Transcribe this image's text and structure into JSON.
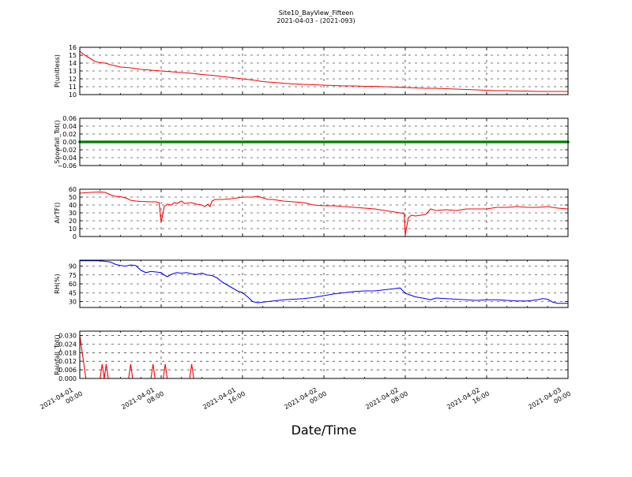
{
  "figure": {
    "title": "Site10_BayView_Fifteen",
    "subtitle": "2021-04-03 - (2021-093)",
    "xlabel": "Date/Time",
    "x_ticks": [
      {
        "x": 0,
        "lines": [
          "2021-04-01",
          "00:00"
        ]
      },
      {
        "x": 8,
        "lines": [
          "2021-04-01",
          "08:00"
        ]
      },
      {
        "x": 16,
        "lines": [
          "2021-04-01",
          "16:00"
        ]
      },
      {
        "x": 24,
        "lines": [
          "2021-04-02",
          "00:00"
        ]
      },
      {
        "x": 32,
        "lines": [
          "2021-04-02",
          "08:00"
        ]
      },
      {
        "x": 40,
        "lines": [
          "2021-04-02",
          "16:00"
        ]
      },
      {
        "x": 48,
        "lines": [
          "2021-04-03",
          "00:00"
        ]
      }
    ]
  },
  "chart_data": [
    {
      "type": "line",
      "title": "",
      "xlabel": "",
      "ylabel": "P(unitless)",
      "ylim": [
        10,
        16
      ],
      "yticks": [
        "10",
        "11",
        "12",
        "13",
        "14",
        "15",
        "16"
      ],
      "grid": true,
      "color": "#ff0000",
      "x_unit": "hours since 2021-04-01 00:00",
      "points": [
        [
          0,
          15.5
        ],
        [
          0.5,
          15.0
        ],
        [
          1,
          14.6
        ],
        [
          1.5,
          14.2
        ],
        [
          2,
          14.05
        ],
        [
          2.5,
          14.0
        ],
        [
          3,
          13.8
        ],
        [
          3.5,
          13.65
        ],
        [
          4,
          13.5
        ],
        [
          4.5,
          13.45
        ],
        [
          5,
          13.4
        ],
        [
          6,
          13.2
        ],
        [
          7,
          13.1
        ],
        [
          8,
          13.0
        ],
        [
          9,
          12.9
        ],
        [
          10,
          12.8
        ],
        [
          11,
          12.7
        ],
        [
          12,
          12.55
        ],
        [
          13,
          12.45
        ],
        [
          14,
          12.3
        ],
        [
          15,
          12.15
        ],
        [
          16,
          12.0
        ],
        [
          17,
          11.85
        ],
        [
          18,
          11.65
        ],
        [
          19,
          11.55
        ],
        [
          20,
          11.45
        ],
        [
          21,
          11.35
        ],
        [
          22,
          11.3
        ],
        [
          23,
          11.25
        ],
        [
          24,
          11.2
        ],
        [
          25,
          11.15
        ],
        [
          26,
          11.1
        ],
        [
          27,
          11.1
        ],
        [
          28,
          11.05
        ],
        [
          29,
          11.05
        ],
        [
          30,
          11.0
        ],
        [
          31,
          10.95
        ],
        [
          32,
          10.9
        ],
        [
          33,
          10.85
        ],
        [
          34,
          10.8
        ],
        [
          35,
          10.8
        ],
        [
          36,
          10.75
        ],
        [
          37,
          10.7
        ],
        [
          38,
          10.65
        ],
        [
          39,
          10.6
        ],
        [
          40,
          10.55
        ],
        [
          41,
          10.5
        ],
        [
          42,
          10.5
        ],
        [
          43,
          10.45
        ],
        [
          44,
          10.45
        ],
        [
          45,
          10.4
        ],
        [
          46,
          10.4
        ],
        [
          47,
          10.4
        ],
        [
          48,
          10.4
        ]
      ]
    },
    {
      "type": "scatter",
      "title": "",
      "xlabel": "",
      "ylabel": "Snowfall_Tot()",
      "ylim": [
        -0.06,
        0.06
      ],
      "yticks": [
        "−0.06",
        "−0.04",
        "−0.02",
        "0.00",
        "0.02",
        "0.04",
        "0.06"
      ],
      "grid": true,
      "color": "#008000",
      "x_unit": "hours since 2021-04-01 00:00",
      "constant_value": 0.0,
      "x_range": [
        0,
        48
      ]
    },
    {
      "type": "line",
      "title": "",
      "xlabel": "",
      "ylabel": "AirTF()",
      "ylim": [
        0,
        60
      ],
      "yticks": [
        "0",
        "10",
        "20",
        "30",
        "40",
        "50",
        "60"
      ],
      "grid": true,
      "color": "#ff0000",
      "x_unit": "hours since 2021-04-01 00:00",
      "points": [
        [
          0,
          55
        ],
        [
          0.5,
          55.5
        ],
        [
          1,
          56
        ],
        [
          2,
          56.5
        ],
        [
          2.5,
          56
        ],
        [
          3,
          53
        ],
        [
          3.5,
          51
        ],
        [
          4,
          50.5
        ],
        [
          4.5,
          49
        ],
        [
          5,
          46
        ],
        [
          5.5,
          45
        ],
        [
          6,
          44.5
        ],
        [
          7,
          44
        ],
        [
          7.5,
          44
        ],
        [
          7.8,
          43
        ],
        [
          8,
          18
        ],
        [
          8.3,
          38
        ],
        [
          8.6,
          41
        ],
        [
          9,
          40
        ],
        [
          9.3,
          43
        ],
        [
          9.6,
          42
        ],
        [
          10,
          45
        ],
        [
          10.3,
          42
        ],
        [
          11,
          43
        ],
        [
          11.5,
          41
        ],
        [
          12,
          40
        ],
        [
          12.3,
          38
        ],
        [
          12.6,
          41
        ],
        [
          12.8,
          38
        ],
        [
          13,
          45
        ],
        [
          13.3,
          47
        ],
        [
          14,
          47
        ],
        [
          15,
          48
        ],
        [
          15.5,
          49
        ],
        [
          16,
          50
        ],
        [
          17,
          50
        ],
        [
          17.5,
          51
        ],
        [
          18,
          49
        ],
        [
          18.5,
          47
        ],
        [
          19,
          47
        ],
        [
          20,
          45
        ],
        [
          21,
          44
        ],
        [
          22,
          43
        ],
        [
          23,
          40
        ],
        [
          24,
          39
        ],
        [
          25,
          39
        ],
        [
          26,
          38
        ],
        [
          27,
          37
        ],
        [
          28,
          36
        ],
        [
          29,
          35
        ],
        [
          30,
          33
        ],
        [
          31,
          31
        ],
        [
          31.5,
          30
        ],
        [
          31.9,
          29
        ],
        [
          32,
          2
        ],
        [
          32.3,
          24
        ],
        [
          32.6,
          27
        ],
        [
          33,
          26
        ],
        [
          33.5,
          27
        ],
        [
          34,
          28
        ],
        [
          34.5,
          35
        ],
        [
          35,
          33
        ],
        [
          36,
          34
        ],
        [
          37,
          33
        ],
        [
          38,
          35
        ],
        [
          39,
          35
        ],
        [
          40,
          35
        ],
        [
          41,
          37
        ],
        [
          42,
          37
        ],
        [
          43,
          38
        ],
        [
          44,
          37
        ],
        [
          45,
          37
        ],
        [
          46,
          38
        ],
        [
          47,
          36
        ],
        [
          48,
          35
        ]
      ]
    },
    {
      "type": "line",
      "title": "",
      "xlabel": "",
      "ylabel": "RH(%)",
      "ylim": [
        20,
        100
      ],
      "yticks": [
        "30",
        "45",
        "60",
        "75",
        "90"
      ],
      "grid": true,
      "color": "#0000ff",
      "x_unit": "hours since 2021-04-01 00:00",
      "points": [
        [
          0,
          99
        ],
        [
          1,
          99
        ],
        [
          2,
          99
        ],
        [
          2.5,
          98
        ],
        [
          3,
          97
        ],
        [
          3.5,
          93
        ],
        [
          4,
          91
        ],
        [
          4.5,
          90
        ],
        [
          5,
          92
        ],
        [
          5.5,
          91
        ],
        [
          6,
          83
        ],
        [
          6.5,
          79
        ],
        [
          7,
          81
        ],
        [
          7.5,
          80
        ],
        [
          8,
          79
        ],
        [
          8.3,
          75
        ],
        [
          8.6,
          72
        ],
        [
          9,
          76
        ],
        [
          9.5,
          79
        ],
        [
          10,
          78
        ],
        [
          10.5,
          79
        ],
        [
          11,
          77
        ],
        [
          11.5,
          76
        ],
        [
          12,
          78
        ],
        [
          12.5,
          75
        ],
        [
          13,
          74
        ],
        [
          13.5,
          70
        ],
        [
          14,
          63
        ],
        [
          14.5,
          58
        ],
        [
          15,
          53
        ],
        [
          15.5,
          48
        ],
        [
          16,
          45
        ],
        [
          16.5,
          38
        ],
        [
          17,
          30
        ],
        [
          17.5,
          28
        ],
        [
          18,
          29
        ],
        [
          19,
          31
        ],
        [
          20,
          33
        ],
        [
          21,
          34
        ],
        [
          22,
          35
        ],
        [
          23,
          37
        ],
        [
          24,
          40
        ],
        [
          25,
          43
        ],
        [
          26,
          45
        ],
        [
          27,
          47
        ],
        [
          28,
          48
        ],
        [
          29,
          48
        ],
        [
          30,
          50
        ],
        [
          31,
          52
        ],
        [
          31.5,
          53
        ],
        [
          32,
          44
        ],
        [
          32.5,
          41
        ],
        [
          33,
          38
        ],
        [
          34,
          35
        ],
        [
          34.5,
          33
        ],
        [
          35,
          36
        ],
        [
          36,
          35
        ],
        [
          37,
          34
        ],
        [
          38,
          33
        ],
        [
          39,
          32
        ],
        [
          40,
          33
        ],
        [
          41,
          33
        ],
        [
          42,
          32
        ],
        [
          43,
          31
        ],
        [
          44,
          31
        ],
        [
          45,
          33
        ],
        [
          45.5,
          35
        ],
        [
          46,
          34
        ],
        [
          46.5,
          29
        ],
        [
          47,
          27
        ],
        [
          48,
          27
        ]
      ]
    },
    {
      "type": "line",
      "title": "",
      "xlabel": "",
      "ylabel": "Rainfall_Tot()",
      "ylim": [
        0,
        0.033
      ],
      "yticks": [
        "0.000",
        "0.006",
        "0.012",
        "0.018",
        "0.024",
        "0.030"
      ],
      "grid": true,
      "color": "#ff0000",
      "x_unit": "hours since 2021-04-01 00:00",
      "points": [
        [
          0,
          0.03
        ],
        [
          0.3,
          0.015
        ],
        [
          0.6,
          0
        ],
        [
          2,
          0
        ],
        [
          2.2,
          0.01
        ],
        [
          2.4,
          0
        ],
        [
          2.6,
          0.01
        ],
        [
          2.8,
          0
        ],
        [
          4.8,
          0
        ],
        [
          5,
          0.01
        ],
        [
          5.2,
          0
        ],
        [
          7,
          0
        ],
        [
          7.2,
          0.01
        ],
        [
          7.4,
          0
        ],
        [
          8.2,
          0
        ],
        [
          8.4,
          0.01
        ],
        [
          8.6,
          0
        ],
        [
          10.8,
          0
        ],
        [
          11,
          0.01
        ],
        [
          11.2,
          0
        ],
        [
          48,
          0
        ]
      ]
    }
  ]
}
